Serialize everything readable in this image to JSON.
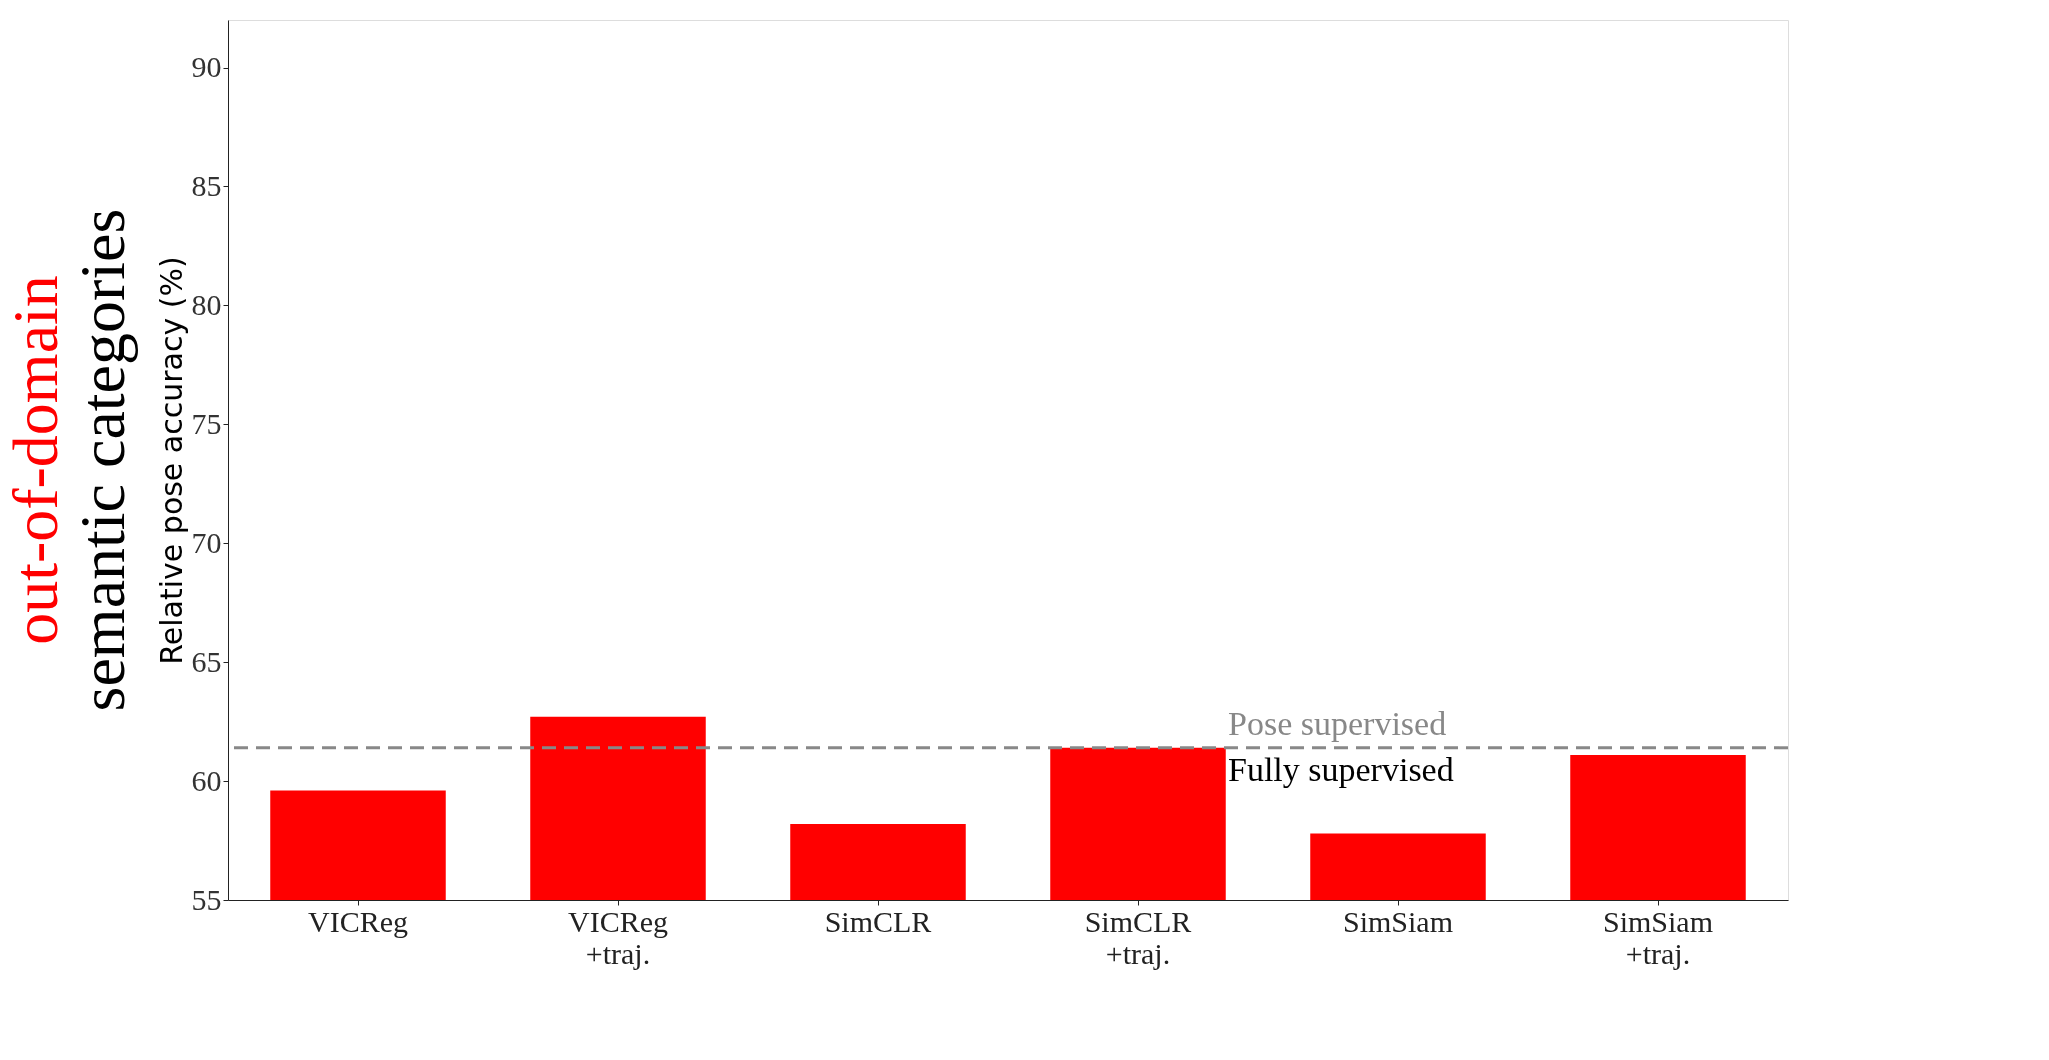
{
  "chart_data": {
    "type": "bar",
    "title": "out-of-domain",
    "subtitle": "semantic categories",
    "ylabel": "Relative pose accuracy (%)",
    "categories": [
      "VICReg",
      "VICReg\n+traj.",
      "SimCLR",
      "SimCLR\n+traj.",
      "SimSiam",
      "SimSiam\n+traj."
    ],
    "values": [
      59.6,
      62.7,
      58.2,
      61.4,
      57.8,
      61.1
    ],
    "color": "#ff0000",
    "ylim": [
      55,
      92
    ],
    "yticks": [
      55,
      60,
      65,
      70,
      75,
      80,
      85,
      90
    ],
    "grid": false,
    "ref_lines": [
      {
        "axis": "y",
        "value": 61.4,
        "label": "Pose supervised",
        "color": "#888888",
        "line_style": "dashed"
      }
    ],
    "annotations": [
      "Fully supervised"
    ]
  }
}
